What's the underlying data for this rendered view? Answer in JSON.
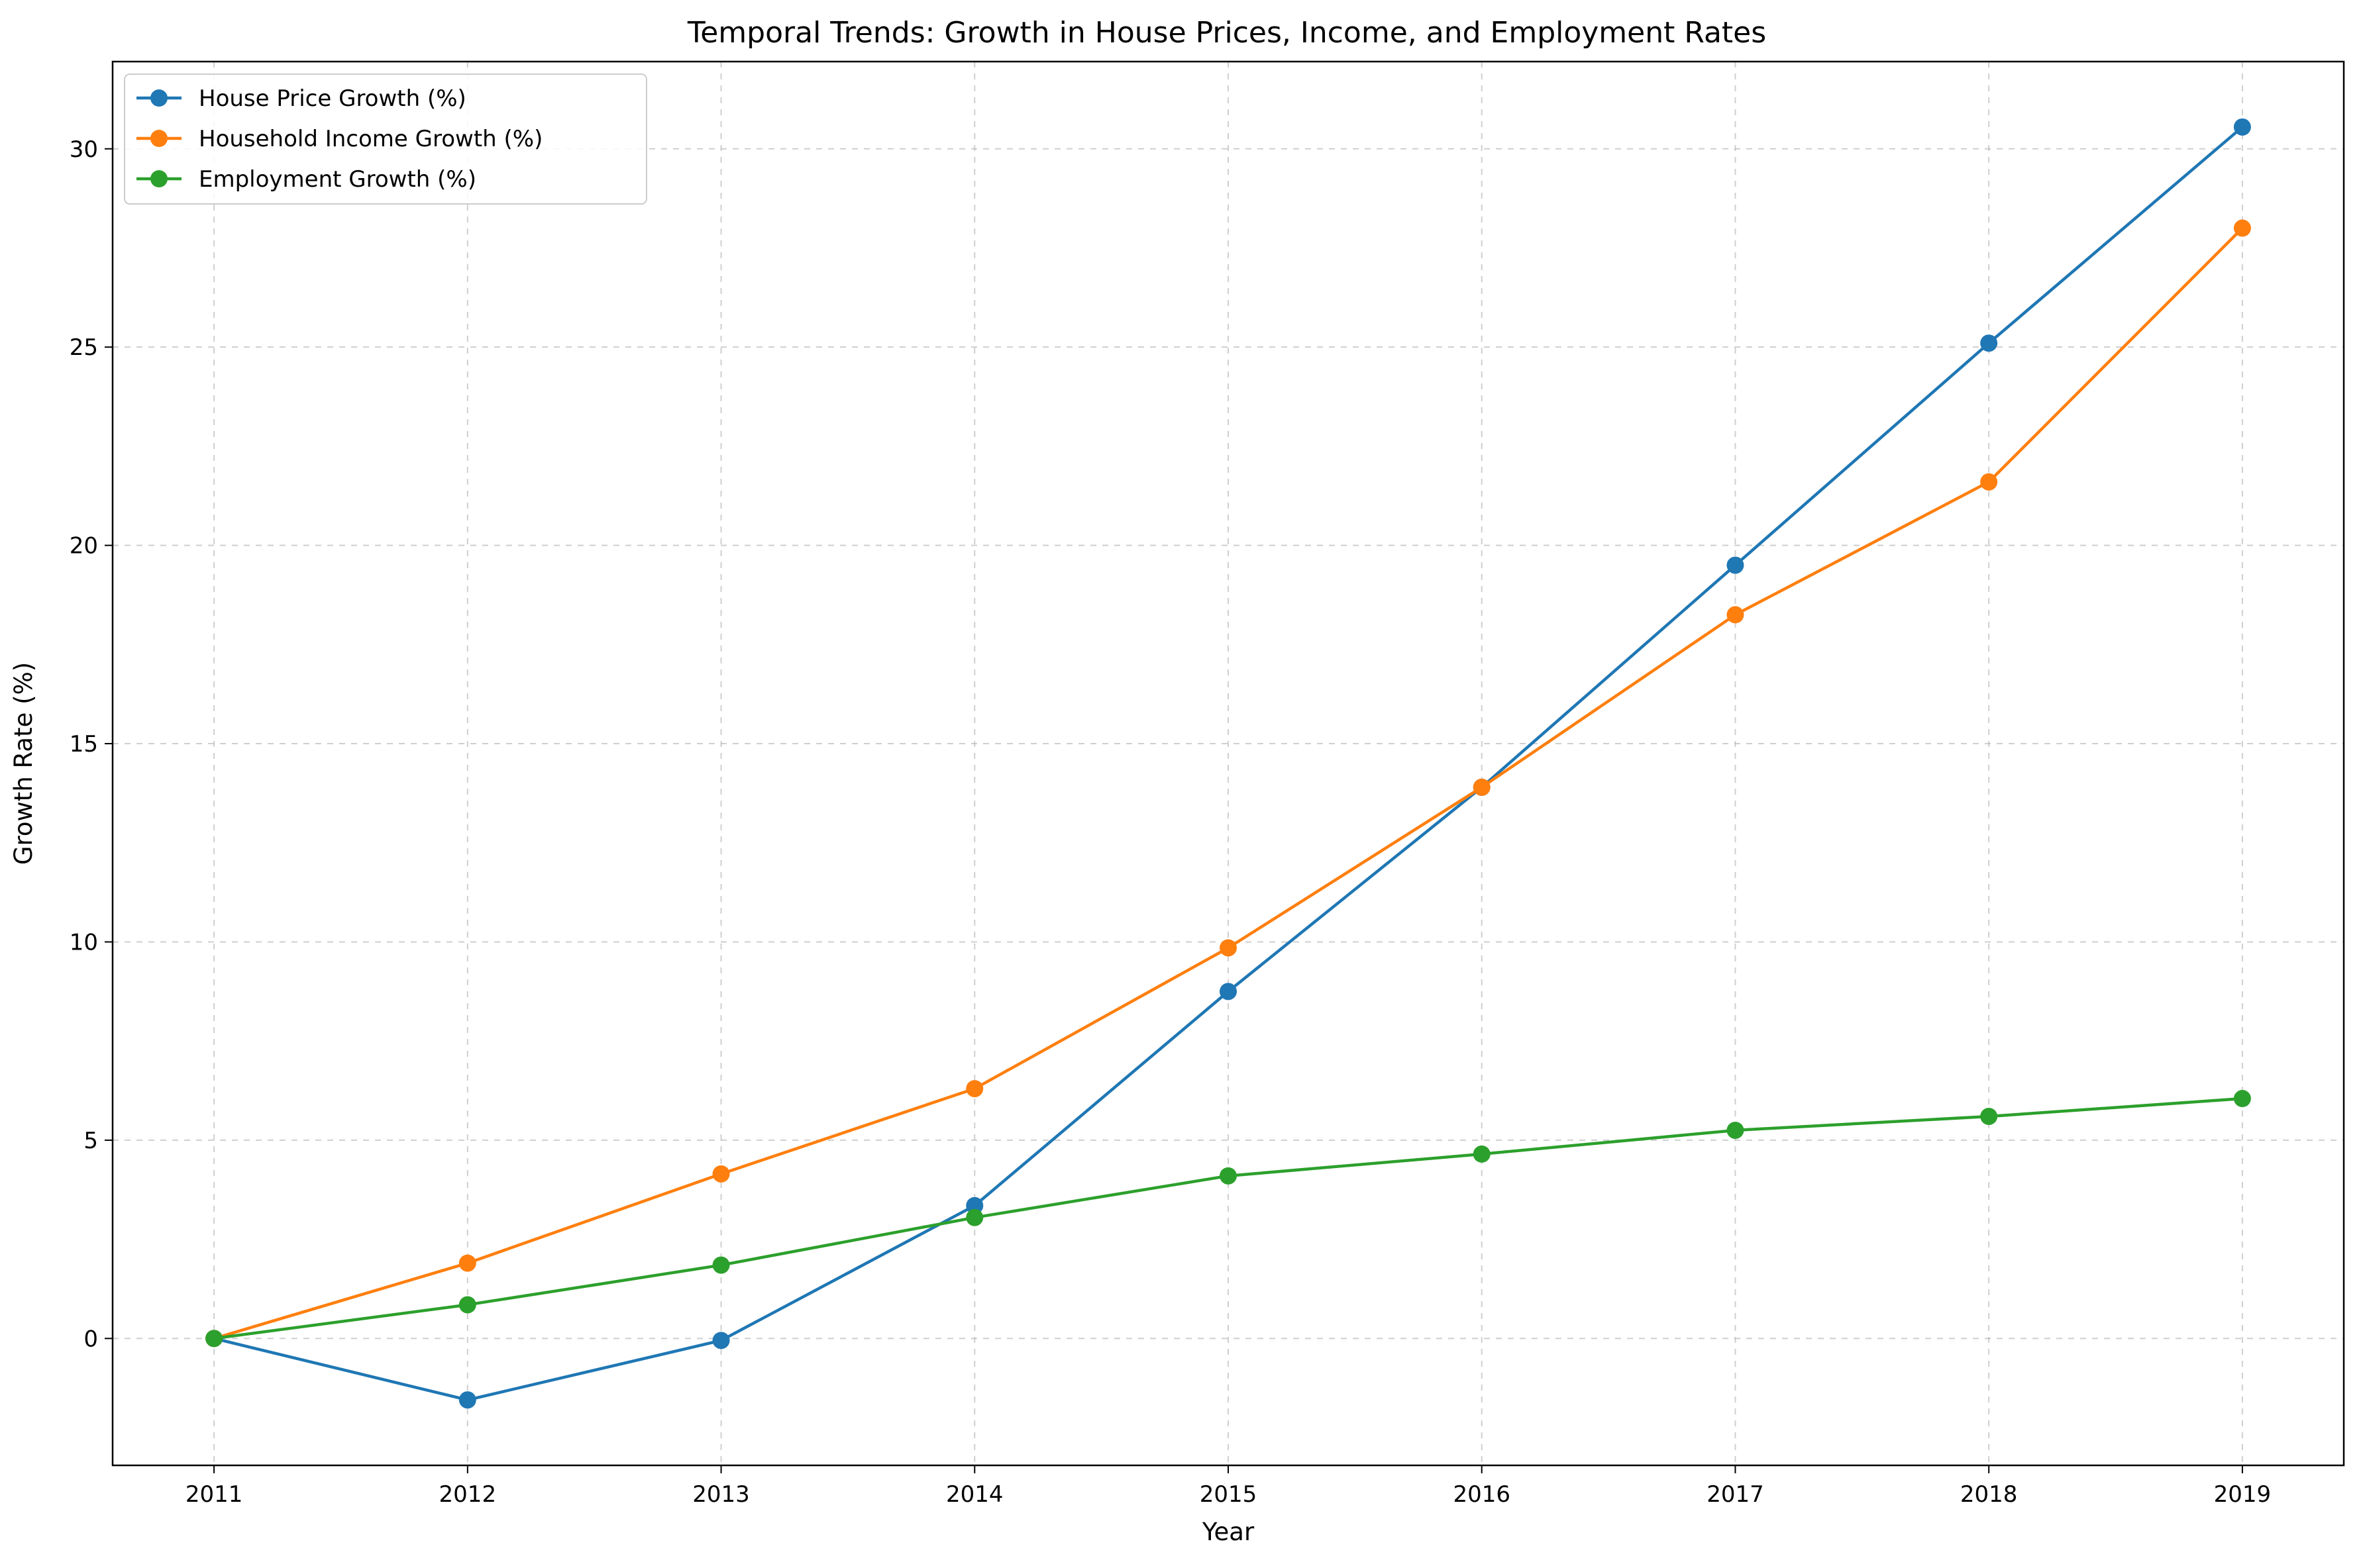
{
  "chart_data": {
    "type": "line",
    "title": "Temporal Trends: Growth in House Prices, Income, and Employment Rates",
    "xlabel": "Year",
    "ylabel": "Growth Rate (%)",
    "x": [
      2011,
      2012,
      2013,
      2014,
      2015,
      2016,
      2017,
      2018,
      2019
    ],
    "xlim": [
      2010.6,
      2019.4
    ],
    "ylim": [
      -3.2,
      32.2
    ],
    "yticks": [
      0,
      5,
      10,
      15,
      20,
      25,
      30
    ],
    "grid": true,
    "legend_position": "top-left",
    "series": [
      {
        "name": "House Price Growth (%)",
        "color": "#1f77b4",
        "values": [
          0.0,
          -1.55,
          -0.05,
          3.35,
          8.75,
          13.9,
          19.5,
          25.1,
          30.55
        ]
      },
      {
        "name": "Household Income Growth (%)",
        "color": "#ff7f0e",
        "values": [
          0.0,
          1.9,
          4.15,
          6.3,
          9.85,
          13.9,
          18.25,
          21.6,
          28.0
        ]
      },
      {
        "name": "Employment Growth (%)",
        "color": "#2ca02c",
        "values": [
          0.0,
          0.85,
          1.85,
          3.05,
          4.1,
          4.65,
          5.25,
          5.6,
          6.05
        ]
      }
    ]
  }
}
